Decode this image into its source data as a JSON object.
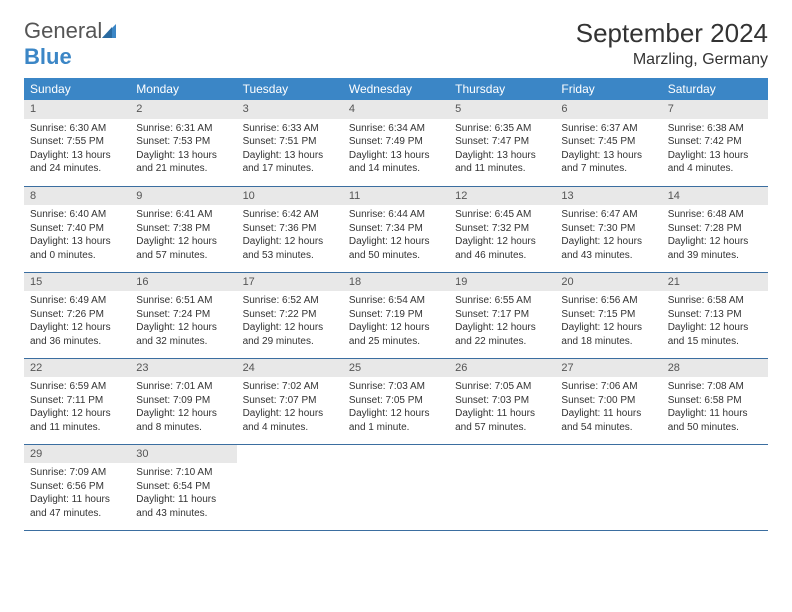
{
  "brand": {
    "name1": "General",
    "name2": "Blue"
  },
  "title": "September 2024",
  "location": "Marzling, Germany",
  "colors": {
    "header_bg": "#3b86c6",
    "header_text": "#ffffff",
    "daynum_bg": "#e8e8e8",
    "border": "#3b6ea0",
    "body_bg": "#ffffff"
  },
  "day_labels": [
    "Sunday",
    "Monday",
    "Tuesday",
    "Wednesday",
    "Thursday",
    "Friday",
    "Saturday"
  ],
  "weeks": [
    [
      {
        "n": "1",
        "sr": "Sunrise: 6:30 AM",
        "ss": "Sunset: 7:55 PM",
        "d1": "Daylight: 13 hours",
        "d2": "and 24 minutes."
      },
      {
        "n": "2",
        "sr": "Sunrise: 6:31 AM",
        "ss": "Sunset: 7:53 PM",
        "d1": "Daylight: 13 hours",
        "d2": "and 21 minutes."
      },
      {
        "n": "3",
        "sr": "Sunrise: 6:33 AM",
        "ss": "Sunset: 7:51 PM",
        "d1": "Daylight: 13 hours",
        "d2": "and 17 minutes."
      },
      {
        "n": "4",
        "sr": "Sunrise: 6:34 AM",
        "ss": "Sunset: 7:49 PM",
        "d1": "Daylight: 13 hours",
        "d2": "and 14 minutes."
      },
      {
        "n": "5",
        "sr": "Sunrise: 6:35 AM",
        "ss": "Sunset: 7:47 PM",
        "d1": "Daylight: 13 hours",
        "d2": "and 11 minutes."
      },
      {
        "n": "6",
        "sr": "Sunrise: 6:37 AM",
        "ss": "Sunset: 7:45 PM",
        "d1": "Daylight: 13 hours",
        "d2": "and 7 minutes."
      },
      {
        "n": "7",
        "sr": "Sunrise: 6:38 AM",
        "ss": "Sunset: 7:42 PM",
        "d1": "Daylight: 13 hours",
        "d2": "and 4 minutes."
      }
    ],
    [
      {
        "n": "8",
        "sr": "Sunrise: 6:40 AM",
        "ss": "Sunset: 7:40 PM",
        "d1": "Daylight: 13 hours",
        "d2": "and 0 minutes."
      },
      {
        "n": "9",
        "sr": "Sunrise: 6:41 AM",
        "ss": "Sunset: 7:38 PM",
        "d1": "Daylight: 12 hours",
        "d2": "and 57 minutes."
      },
      {
        "n": "10",
        "sr": "Sunrise: 6:42 AM",
        "ss": "Sunset: 7:36 PM",
        "d1": "Daylight: 12 hours",
        "d2": "and 53 minutes."
      },
      {
        "n": "11",
        "sr": "Sunrise: 6:44 AM",
        "ss": "Sunset: 7:34 PM",
        "d1": "Daylight: 12 hours",
        "d2": "and 50 minutes."
      },
      {
        "n": "12",
        "sr": "Sunrise: 6:45 AM",
        "ss": "Sunset: 7:32 PM",
        "d1": "Daylight: 12 hours",
        "d2": "and 46 minutes."
      },
      {
        "n": "13",
        "sr": "Sunrise: 6:47 AM",
        "ss": "Sunset: 7:30 PM",
        "d1": "Daylight: 12 hours",
        "d2": "and 43 minutes."
      },
      {
        "n": "14",
        "sr": "Sunrise: 6:48 AM",
        "ss": "Sunset: 7:28 PM",
        "d1": "Daylight: 12 hours",
        "d2": "and 39 minutes."
      }
    ],
    [
      {
        "n": "15",
        "sr": "Sunrise: 6:49 AM",
        "ss": "Sunset: 7:26 PM",
        "d1": "Daylight: 12 hours",
        "d2": "and 36 minutes."
      },
      {
        "n": "16",
        "sr": "Sunrise: 6:51 AM",
        "ss": "Sunset: 7:24 PM",
        "d1": "Daylight: 12 hours",
        "d2": "and 32 minutes."
      },
      {
        "n": "17",
        "sr": "Sunrise: 6:52 AM",
        "ss": "Sunset: 7:22 PM",
        "d1": "Daylight: 12 hours",
        "d2": "and 29 minutes."
      },
      {
        "n": "18",
        "sr": "Sunrise: 6:54 AM",
        "ss": "Sunset: 7:19 PM",
        "d1": "Daylight: 12 hours",
        "d2": "and 25 minutes."
      },
      {
        "n": "19",
        "sr": "Sunrise: 6:55 AM",
        "ss": "Sunset: 7:17 PM",
        "d1": "Daylight: 12 hours",
        "d2": "and 22 minutes."
      },
      {
        "n": "20",
        "sr": "Sunrise: 6:56 AM",
        "ss": "Sunset: 7:15 PM",
        "d1": "Daylight: 12 hours",
        "d2": "and 18 minutes."
      },
      {
        "n": "21",
        "sr": "Sunrise: 6:58 AM",
        "ss": "Sunset: 7:13 PM",
        "d1": "Daylight: 12 hours",
        "d2": "and 15 minutes."
      }
    ],
    [
      {
        "n": "22",
        "sr": "Sunrise: 6:59 AM",
        "ss": "Sunset: 7:11 PM",
        "d1": "Daylight: 12 hours",
        "d2": "and 11 minutes."
      },
      {
        "n": "23",
        "sr": "Sunrise: 7:01 AM",
        "ss": "Sunset: 7:09 PM",
        "d1": "Daylight: 12 hours",
        "d2": "and 8 minutes."
      },
      {
        "n": "24",
        "sr": "Sunrise: 7:02 AM",
        "ss": "Sunset: 7:07 PM",
        "d1": "Daylight: 12 hours",
        "d2": "and 4 minutes."
      },
      {
        "n": "25",
        "sr": "Sunrise: 7:03 AM",
        "ss": "Sunset: 7:05 PM",
        "d1": "Daylight: 12 hours",
        "d2": "and 1 minute."
      },
      {
        "n": "26",
        "sr": "Sunrise: 7:05 AM",
        "ss": "Sunset: 7:03 PM",
        "d1": "Daylight: 11 hours",
        "d2": "and 57 minutes."
      },
      {
        "n": "27",
        "sr": "Sunrise: 7:06 AM",
        "ss": "Sunset: 7:00 PM",
        "d1": "Daylight: 11 hours",
        "d2": "and 54 minutes."
      },
      {
        "n": "28",
        "sr": "Sunrise: 7:08 AM",
        "ss": "Sunset: 6:58 PM",
        "d1": "Daylight: 11 hours",
        "d2": "and 50 minutes."
      }
    ],
    [
      {
        "n": "29",
        "sr": "Sunrise: 7:09 AM",
        "ss": "Sunset: 6:56 PM",
        "d1": "Daylight: 11 hours",
        "d2": "and 47 minutes."
      },
      {
        "n": "30",
        "sr": "Sunrise: 7:10 AM",
        "ss": "Sunset: 6:54 PM",
        "d1": "Daylight: 11 hours",
        "d2": "and 43 minutes."
      },
      null,
      null,
      null,
      null,
      null
    ]
  ]
}
